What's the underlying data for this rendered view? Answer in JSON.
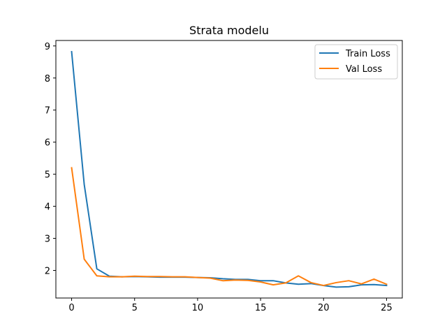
{
  "chart_data": {
    "type": "line",
    "title": "Strata modelu",
    "xlabel": "",
    "ylabel": "",
    "xlim": [
      -1.25,
      26.25
    ],
    "ylim": [
      1.14,
      9.17
    ],
    "xticks": [
      0,
      5,
      10,
      15,
      20,
      25
    ],
    "yticks": [
      2,
      3,
      4,
      5,
      6,
      7,
      8,
      9
    ],
    "grid": false,
    "legend_position": "top-right",
    "x": [
      0,
      1,
      2,
      3,
      4,
      5,
      6,
      7,
      8,
      9,
      10,
      11,
      12,
      13,
      14,
      15,
      16,
      17,
      18,
      19,
      20,
      21,
      22,
      23,
      24,
      25
    ],
    "series": [
      {
        "name": "Train Loss",
        "color": "#1f77b4",
        "values": [
          8.82,
          4.68,
          2.05,
          1.82,
          1.8,
          1.81,
          1.8,
          1.79,
          1.79,
          1.79,
          1.78,
          1.77,
          1.74,
          1.72,
          1.72,
          1.68,
          1.68,
          1.61,
          1.57,
          1.59,
          1.53,
          1.48,
          1.49,
          1.55,
          1.56,
          1.53
        ]
      },
      {
        "name": "Val Loss",
        "color": "#ff7f0e",
        "values": [
          5.2,
          2.35,
          1.83,
          1.8,
          1.8,
          1.82,
          1.81,
          1.81,
          1.8,
          1.8,
          1.78,
          1.76,
          1.68,
          1.7,
          1.69,
          1.64,
          1.55,
          1.61,
          1.83,
          1.62,
          1.53,
          1.62,
          1.68,
          1.58,
          1.73,
          1.57
        ]
      }
    ]
  }
}
